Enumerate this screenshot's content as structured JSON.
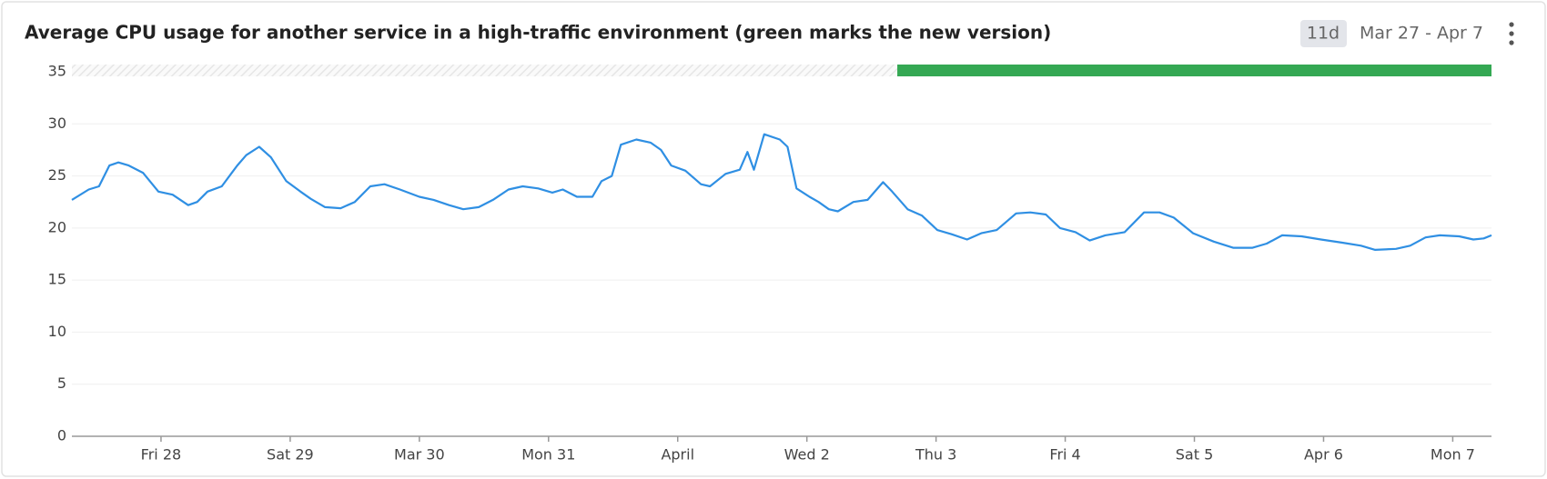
{
  "chart_data": {
    "type": "line",
    "title": "Average CPU usage for another service in a high-traffic environment (green marks the new version)",
    "badge": "11d",
    "date_range": "Mar 27 - Apr 7",
    "x": [
      27.31,
      27.44,
      27.52,
      27.6,
      27.67,
      27.75,
      27.86,
      27.98,
      28.09,
      28.21,
      28.28,
      28.36,
      28.47,
      28.59,
      28.66,
      28.76,
      28.85,
      28.97,
      29.08,
      29.16,
      29.27,
      29.39,
      29.5,
      29.62,
      29.73,
      29.85,
      30.0,
      30.11,
      30.23,
      30.34,
      30.46,
      30.57,
      30.69,
      30.8,
      30.92,
      31.03,
      31.11,
      31.22,
      31.34,
      31.41,
      31.49,
      31.56,
      31.68,
      31.79,
      31.87,
      31.95,
      32.06,
      32.18,
      32.25,
      32.37,
      32.48,
      32.54,
      32.59,
      32.67,
      32.79,
      32.85,
      32.92,
      33.02,
      33.09,
      33.17,
      33.24,
      33.36,
      33.47,
      33.59,
      33.66,
      33.78,
      33.89,
      34.01,
      34.12,
      34.24,
      34.35,
      34.47,
      34.62,
      34.73,
      34.85,
      34.96,
      35.08,
      35.19,
      35.31,
      35.46,
      35.61,
      35.73,
      35.84,
      35.99,
      36.15,
      36.3,
      36.45,
      36.56,
      36.68,
      36.83,
      36.98,
      37.14,
      37.29,
      37.4,
      37.56,
      37.67,
      37.79,
      37.9,
      38.05,
      38.16,
      38.24,
      38.3
    ],
    "series": [
      {
        "color": "#2f8fe3",
        "values": [
          22.7,
          23.7,
          24.0,
          26.0,
          26.3,
          26.0,
          25.3,
          23.5,
          23.2,
          22.2,
          22.5,
          23.5,
          24.0,
          26.0,
          27.0,
          27.8,
          26.8,
          24.5,
          23.5,
          22.8,
          22.0,
          21.9,
          22.5,
          24.0,
          24.2,
          23.7,
          23.0,
          22.7,
          22.2,
          21.8,
          22.0,
          22.7,
          23.7,
          24.0,
          23.8,
          23.4,
          23.7,
          23.0,
          23.0,
          24.5,
          25.0,
          28.0,
          28.5,
          28.2,
          27.5,
          26.0,
          25.5,
          24.2,
          24.0,
          25.2,
          25.6,
          27.3,
          25.6,
          29.0,
          28.5,
          27.8,
          23.8,
          23.0,
          22.5,
          21.8,
          21.6,
          22.5,
          22.7,
          24.4,
          23.5,
          21.8,
          21.2,
          19.8,
          19.4,
          18.9,
          19.5,
          19.8,
          21.4,
          21.5,
          21.3,
          20.0,
          19.6,
          18.8,
          19.3,
          19.6,
          21.5,
          21.5,
          21.0,
          19.5,
          18.7,
          18.1,
          18.1,
          18.5,
          19.3,
          19.2,
          18.9,
          18.6,
          18.3,
          17.9,
          18.0,
          18.3,
          19.1,
          19.3,
          19.2,
          18.9,
          19.0,
          19.3
        ]
      }
    ],
    "xlim": [
      27.31,
      38.3
    ],
    "xticks": [
      {
        "value": 28,
        "label": "Fri 28"
      },
      {
        "value": 29,
        "label": "Sat 29"
      },
      {
        "value": 30,
        "label": "Mar 30"
      },
      {
        "value": 31,
        "label": "Mon 31"
      },
      {
        "value": 32,
        "label": "April"
      },
      {
        "value": 33,
        "label": "Wed 2"
      },
      {
        "value": 34,
        "label": "Thu 3"
      },
      {
        "value": 35,
        "label": "Fri 4"
      },
      {
        "value": 36,
        "label": "Sat 5"
      },
      {
        "value": 37,
        "label": "Apr 6"
      },
      {
        "value": 38,
        "label": "Mon 7"
      }
    ],
    "ylim": [
      0,
      35
    ],
    "yticks": [
      0,
      5,
      10,
      15,
      20,
      25,
      30,
      35
    ],
    "grid": true,
    "new_version_span": [
      33.7,
      38.3
    ],
    "new_version_color": "#34a853"
  }
}
